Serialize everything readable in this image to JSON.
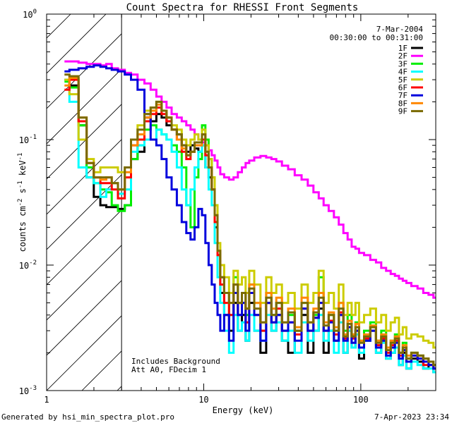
{
  "chart_data": {
    "type": "line",
    "title": "Count Spectra for RHESSI Front Segments",
    "xlabel": "Energy (keV)",
    "ylabel_parts": [
      "counts cm",
      "-2",
      " s",
      "-1",
      " keV",
      "-1"
    ],
    "x_scale": "log",
    "y_scale": "log",
    "xlim": [
      1,
      300
    ],
    "ylim": [
      0.001,
      1
    ],
    "x_ticks": [
      {
        "v": 1,
        "label": "1"
      },
      {
        "v": 10,
        "label": "10"
      },
      {
        "v": 100,
        "label": "100"
      }
    ],
    "y_ticks": [
      {
        "v": 0.001,
        "base": "10",
        "exp": "-3"
      },
      {
        "v": 0.01,
        "base": "10",
        "exp": "-2"
      },
      {
        "v": 0.1,
        "base": "10",
        "exp": "-1"
      },
      {
        "v": 1,
        "base": "10",
        "exp": "0"
      }
    ],
    "shaded_region_below_keV": 3,
    "info_top_right": [
      "7-Mar-2004",
      "00:30:00 to 00:31:00"
    ],
    "info_bottom": [
      "Includes Background",
      "Att A0, FDecim 1"
    ],
    "footer_left": "Generated by hsi_min_spectra_plot.pro",
    "footer_right": "7-Apr-2023 23:34",
    "legend_position": "top-right",
    "x": [
      1.3,
      1.5,
      1.7,
      1.9,
      2.1,
      2.3,
      2.5,
      2.7,
      3.0,
      3.3,
      3.6,
      4.0,
      4.4,
      4.8,
      5.2,
      5.6,
      6.0,
      6.5,
      7.0,
      7.5,
      8.0,
      8.5,
      9.0,
      9.5,
      10.0,
      10.5,
      11.0,
      11.5,
      12.0,
      12.5,
      13,
      14,
      15,
      16,
      17,
      18,
      19,
      20,
      22,
      24,
      26,
      28,
      30,
      33,
      36,
      40,
      44,
      48,
      52,
      56,
      60,
      65,
      70,
      75,
      80,
      85,
      90,
      95,
      100,
      110,
      120,
      130,
      140,
      150,
      160,
      170,
      180,
      190,
      200,
      220,
      240,
      260,
      280,
      300
    ],
    "series": [
      {
        "name": "1F",
        "color": "#000000",
        "values": [
          0.3,
          0.27,
          0.13,
          0.05,
          0.035,
          0.03,
          0.029,
          0.029,
          0.028,
          0.03,
          0.07,
          0.08,
          0.15,
          0.14,
          0.16,
          0.15,
          0.13,
          0.12,
          0.11,
          0.09,
          0.08,
          0.09,
          0.085,
          0.08,
          0.09,
          0.06,
          0.05,
          0.04,
          0.02,
          0.012,
          0.006,
          0.004,
          0.003,
          0.005,
          0.003,
          0.004,
          0.0025,
          0.005,
          0.003,
          0.002,
          0.005,
          0.003,
          0.004,
          0.0025,
          0.002,
          0.003,
          0.004,
          0.002,
          0.003,
          0.0045,
          0.002,
          0.003,
          0.0025,
          0.004,
          0.002,
          0.003,
          0.0022,
          0.003,
          0.0018,
          0.0025,
          0.003,
          0.002,
          0.0025,
          0.0018,
          0.002,
          0.0022,
          0.0016,
          0.002,
          0.0015,
          0.0018,
          0.0017,
          0.0015,
          0.0016,
          0.0014
        ]
      },
      {
        "name": "2F",
        "color": "#ff00ff",
        "values": [
          0.42,
          0.42,
          0.41,
          0.4,
          0.4,
          0.39,
          0.4,
          0.37,
          0.36,
          0.34,
          0.33,
          0.3,
          0.28,
          0.25,
          0.22,
          0.2,
          0.18,
          0.16,
          0.15,
          0.14,
          0.13,
          0.12,
          0.11,
          0.1,
          0.095,
          0.09,
          0.082,
          0.075,
          0.068,
          0.06,
          0.053,
          0.05,
          0.048,
          0.05,
          0.055,
          0.06,
          0.065,
          0.068,
          0.072,
          0.074,
          0.072,
          0.07,
          0.067,
          0.062,
          0.058,
          0.052,
          0.048,
          0.043,
          0.038,
          0.034,
          0.03,
          0.027,
          0.024,
          0.021,
          0.018,
          0.016,
          0.014,
          0.0135,
          0.0125,
          0.012,
          0.011,
          0.0105,
          0.0095,
          0.009,
          0.0085,
          0.0082,
          0.0078,
          0.0075,
          0.0072,
          0.0068,
          0.0065,
          0.006,
          0.0058,
          0.0055
        ]
      },
      {
        "name": "3F",
        "color": "#00ee00",
        "values": [
          0.29,
          0.26,
          0.13,
          0.06,
          0.045,
          0.04,
          0.038,
          0.03,
          0.027,
          0.03,
          0.07,
          0.09,
          0.12,
          0.13,
          0.12,
          0.11,
          0.1,
          0.09,
          0.08,
          0.06,
          0.03,
          0.02,
          0.05,
          0.07,
          0.13,
          0.1,
          0.07,
          0.05,
          0.03,
          0.012,
          0.008,
          0.006,
          0.004,
          0.008,
          0.005,
          0.006,
          0.004,
          0.007,
          0.005,
          0.003,
          0.006,
          0.004,
          0.005,
          0.003,
          0.004,
          0.003,
          0.005,
          0.003,
          0.004,
          0.008,
          0.003,
          0.004,
          0.003,
          0.005,
          0.003,
          0.004,
          0.0028,
          0.0035,
          0.0025,
          0.003,
          0.0035,
          0.0025,
          0.003,
          0.0022,
          0.0025,
          0.0028,
          0.002,
          0.0024,
          0.0018,
          0.002,
          0.0019,
          0.0018,
          0.0017,
          0.0016
        ]
      },
      {
        "name": "4F",
        "color": "#00ffff",
        "values": [
          0.3,
          0.2,
          0.06,
          0.05,
          0.045,
          0.035,
          0.04,
          0.045,
          0.037,
          0.04,
          0.08,
          0.09,
          0.1,
          0.1,
          0.12,
          0.11,
          0.1,
          0.08,
          0.06,
          0.04,
          0.03,
          0.04,
          0.06,
          0.08,
          0.09,
          0.06,
          0.04,
          0.03,
          0.015,
          0.008,
          0.005,
          0.003,
          0.002,
          0.004,
          0.003,
          0.0035,
          0.0025,
          0.004,
          0.003,
          0.0025,
          0.004,
          0.003,
          0.0035,
          0.0025,
          0.003,
          0.002,
          0.0035,
          0.0025,
          0.003,
          0.004,
          0.0025,
          0.003,
          0.002,
          0.0035,
          0.002,
          0.003,
          0.0022,
          0.0028,
          0.002,
          0.0025,
          0.003,
          0.002,
          0.0024,
          0.0018,
          0.002,
          0.0022,
          0.0016,
          0.0019,
          0.0015,
          0.0017,
          0.0016,
          0.0015,
          0.0015,
          0.0014
        ]
      },
      {
        "name": "5F",
        "color": "#cccc00",
        "values": [
          0.3,
          0.23,
          0.1,
          0.07,
          0.055,
          0.06,
          0.06,
          0.06,
          0.055,
          0.06,
          0.1,
          0.13,
          0.17,
          0.18,
          0.2,
          0.17,
          0.15,
          0.13,
          0.12,
          0.1,
          0.09,
          0.1,
          0.11,
          0.1,
          0.12,
          0.09,
          0.07,
          0.05,
          0.03,
          0.015,
          0.01,
          0.008,
          0.006,
          0.009,
          0.007,
          0.008,
          0.006,
          0.009,
          0.007,
          0.005,
          0.008,
          0.006,
          0.007,
          0.005,
          0.006,
          0.0045,
          0.007,
          0.005,
          0.006,
          0.009,
          0.005,
          0.006,
          0.0045,
          0.007,
          0.004,
          0.005,
          0.004,
          0.005,
          0.0035,
          0.004,
          0.0045,
          0.0035,
          0.004,
          0.003,
          0.0035,
          0.0038,
          0.0028,
          0.0032,
          0.0026,
          0.0028,
          0.0027,
          0.0025,
          0.0024,
          0.0022
        ]
      },
      {
        "name": "6F",
        "color": "#ff0000",
        "values": [
          0.25,
          0.3,
          0.14,
          0.065,
          0.05,
          0.045,
          0.045,
          0.04,
          0.034,
          0.05,
          0.09,
          0.1,
          0.14,
          0.16,
          0.18,
          0.16,
          0.14,
          0.12,
          0.1,
          0.08,
          0.07,
          0.08,
          0.09,
          0.09,
          0.1,
          0.075,
          0.06,
          0.04,
          0.022,
          0.012,
          0.007,
          0.005,
          0.004,
          0.006,
          0.004,
          0.005,
          0.0035,
          0.006,
          0.004,
          0.003,
          0.005,
          0.0035,
          0.0045,
          0.003,
          0.0035,
          0.0028,
          0.0045,
          0.003,
          0.0038,
          0.005,
          0.003,
          0.0036,
          0.0028,
          0.0042,
          0.0026,
          0.0032,
          0.0026,
          0.003,
          0.0022,
          0.0026,
          0.003,
          0.0023,
          0.0026,
          0.002,
          0.0023,
          0.0025,
          0.0019,
          0.0021,
          0.0017,
          0.0019,
          0.0018,
          0.0016,
          0.0016,
          0.0015
        ]
      },
      {
        "name": "7F",
        "color": "#0000dd",
        "values": [
          0.35,
          0.36,
          0.37,
          0.38,
          0.39,
          0.38,
          0.37,
          0.36,
          0.35,
          0.33,
          0.3,
          0.25,
          0.16,
          0.1,
          0.09,
          0.07,
          0.05,
          0.04,
          0.03,
          0.022,
          0.018,
          0.016,
          0.02,
          0.028,
          0.025,
          0.015,
          0.01,
          0.007,
          0.005,
          0.004,
          0.003,
          0.004,
          0.0025,
          0.006,
          0.004,
          0.005,
          0.003,
          0.006,
          0.004,
          0.0025,
          0.005,
          0.0035,
          0.004,
          0.003,
          0.0035,
          0.0025,
          0.0045,
          0.003,
          0.0038,
          0.005,
          0.003,
          0.0035,
          0.0025,
          0.004,
          0.0025,
          0.0032,
          0.0024,
          0.003,
          0.0022,
          0.0025,
          0.003,
          0.0022,
          0.0025,
          0.0019,
          0.0022,
          0.0024,
          0.0018,
          0.0021,
          0.0017,
          0.0019,
          0.0018,
          0.0017,
          0.0016,
          0.0015
        ]
      },
      {
        "name": "8F",
        "color": "#ff8800",
        "values": [
          0.27,
          0.31,
          0.15,
          0.065,
          0.05,
          0.048,
          0.05,
          0.045,
          0.04,
          0.055,
          0.09,
          0.11,
          0.15,
          0.17,
          0.19,
          0.17,
          0.15,
          0.12,
          0.1,
          0.085,
          0.075,
          0.08,
          0.09,
          0.09,
          0.11,
          0.08,
          0.06,
          0.04,
          0.025,
          0.013,
          0.008,
          0.006,
          0.005,
          0.007,
          0.005,
          0.006,
          0.0045,
          0.007,
          0.005,
          0.0035,
          0.006,
          0.0045,
          0.0055,
          0.0035,
          0.0045,
          0.0032,
          0.0055,
          0.0035,
          0.0045,
          0.006,
          0.0035,
          0.0042,
          0.0032,
          0.005,
          0.0028,
          0.0036,
          0.0028,
          0.0034,
          0.0025,
          0.0028,
          0.0033,
          0.0025,
          0.0028,
          0.0022,
          0.0025,
          0.0027,
          0.002,
          0.0023,
          0.0019,
          0.002,
          0.0019,
          0.0018,
          0.0017,
          0.0016
        ]
      },
      {
        "name": "9F",
        "color": "#7a6a00",
        "values": [
          0.33,
          0.32,
          0.15,
          0.065,
          0.05,
          0.05,
          0.05,
          0.045,
          0.04,
          0.06,
          0.1,
          0.12,
          0.16,
          0.18,
          0.2,
          0.17,
          0.15,
          0.12,
          0.11,
          0.09,
          0.075,
          0.08,
          0.095,
          0.095,
          0.11,
          0.08,
          0.06,
          0.04,
          0.025,
          0.013,
          0.008,
          0.006,
          0.005,
          0.007,
          0.005,
          0.006,
          0.0045,
          0.0065,
          0.0045,
          0.0035,
          0.0055,
          0.004,
          0.005,
          0.0035,
          0.0042,
          0.003,
          0.005,
          0.0035,
          0.0042,
          0.0055,
          0.0033,
          0.004,
          0.003,
          0.0045,
          0.0027,
          0.0034,
          0.0027,
          0.0032,
          0.0024,
          0.0027,
          0.0032,
          0.0024,
          0.0027,
          0.0021,
          0.0024,
          0.0026,
          0.002,
          0.0022,
          0.0018,
          0.002,
          0.0019,
          0.0018,
          0.0017,
          0.0016
        ]
      }
    ]
  }
}
